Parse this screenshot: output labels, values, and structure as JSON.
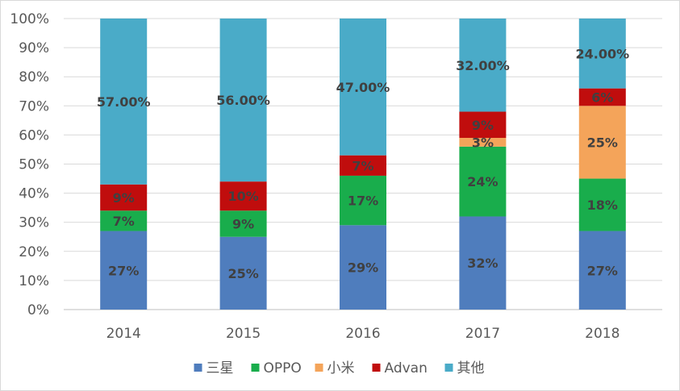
{
  "chart_data": {
    "type": "bar",
    "stacked": true,
    "categories": [
      "2014",
      "2015",
      "2016",
      "2017",
      "2018"
    ],
    "series": [
      {
        "name": "三星",
        "color": "#4f7dbd",
        "values": [
          27,
          25,
          29,
          32,
          27
        ],
        "labels": [
          "27%",
          "25%",
          "29%",
          "32%",
          "27%"
        ]
      },
      {
        "name": "OPPO",
        "color": "#19ad4c",
        "values": [
          7,
          9,
          17,
          24,
          18
        ],
        "labels": [
          "7%",
          "9%",
          "17%",
          "24%",
          "18%"
        ]
      },
      {
        "name": "小米",
        "color": "#f4a45a",
        "values": [
          0,
          0,
          0,
          3,
          25
        ],
        "labels": [
          "",
          "",
          "",
          "3%",
          "25%"
        ]
      },
      {
        "name": "Advan",
        "color": "#c00d0d",
        "values": [
          9,
          10,
          7,
          9,
          6
        ],
        "labels": [
          "9%",
          "10%",
          "7%",
          "9%",
          "6%"
        ]
      },
      {
        "name": "其他",
        "color": "#4aabc8",
        "values": [
          57,
          56,
          47,
          32,
          24
        ],
        "labels": [
          "57.00%",
          "56.00%",
          "47.00%",
          "32.00%",
          "24.00%"
        ]
      }
    ],
    "yticks": [
      "0%",
      "10%",
      "20%",
      "30%",
      "40%",
      "50%",
      "60%",
      "70%",
      "80%",
      "90%",
      "100%"
    ],
    "ylim": [
      0,
      100
    ],
    "grid": true,
    "legend_position": "bottom",
    "title": "",
    "xlabel": "",
    "ylabel": ""
  }
}
